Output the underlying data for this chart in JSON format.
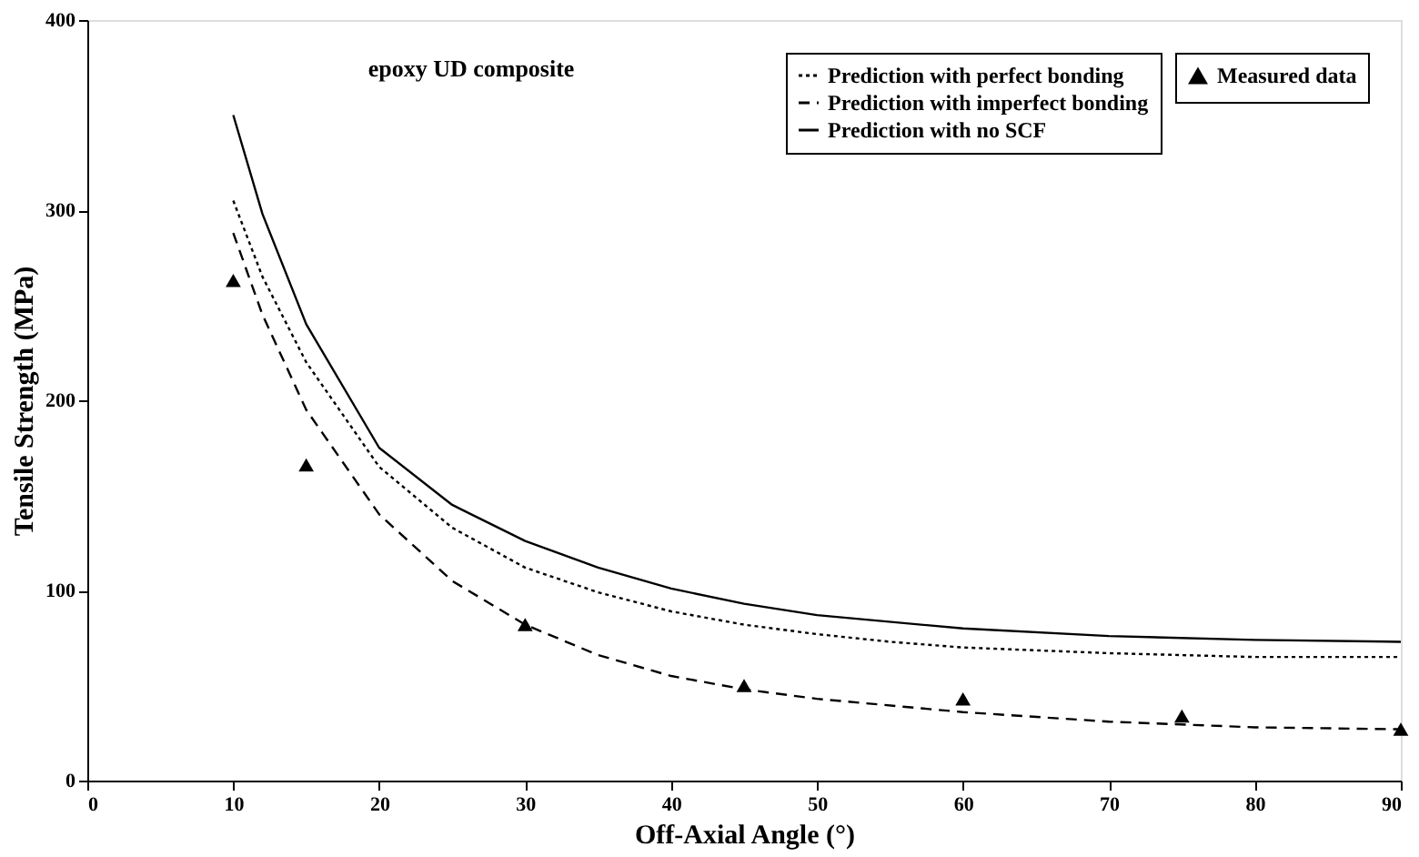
{
  "chart_data": {
    "type": "line",
    "title": "epoxy UD composite",
    "xlabel": "Off-Axial Angle (°)",
    "ylabel": "Tensile Strength (MPa)",
    "xlim": [
      0,
      90
    ],
    "xticks": [
      0,
      10,
      20,
      30,
      40,
      50,
      60,
      70,
      80,
      90
    ],
    "ylim": [
      0,
      400
    ],
    "yticks": [
      0,
      100,
      200,
      300,
      400
    ],
    "grid": false,
    "legend": "top right",
    "series": [
      {
        "name": "Measured data",
        "type": "scatter",
        "marker": "triangle",
        "color": "#000000",
        "x": [
          10,
          15,
          30,
          45,
          60,
          75,
          90
        ],
        "values": [
          263,
          166,
          82,
          50,
          43,
          34,
          27
        ]
      },
      {
        "name": "Prediction with perfect bonding",
        "line_style": "dotted",
        "color": "#000000",
        "x": [
          10,
          12,
          15,
          20,
          25,
          30,
          35,
          40,
          45,
          50,
          55,
          60,
          70,
          80,
          90
        ],
        "values": [
          305,
          265,
          220,
          165,
          133,
          112,
          99,
          89,
          82,
          77,
          73,
          70,
          67,
          65,
          65
        ]
      },
      {
        "name": "Prediction with imperfect bonding",
        "line_style": "dashed",
        "color": "#000000",
        "x": [
          10,
          12,
          15,
          20,
          25,
          30,
          35,
          40,
          45,
          50,
          60,
          70,
          80,
          90
        ],
        "values": [
          288,
          245,
          195,
          140,
          105,
          82,
          66,
          55,
          48,
          43,
          36,
          31,
          28,
          27
        ]
      },
      {
        "name": "Prediction with no SCF",
        "line_style": "solid",
        "color": "#000000",
        "x": [
          10,
          12,
          15,
          20,
          25,
          30,
          35,
          40,
          45,
          50,
          60,
          70,
          80,
          90
        ],
        "values": [
          350,
          298,
          240,
          175,
          145,
          126,
          112,
          101,
          93,
          87,
          80,
          76,
          74,
          73
        ]
      }
    ]
  }
}
